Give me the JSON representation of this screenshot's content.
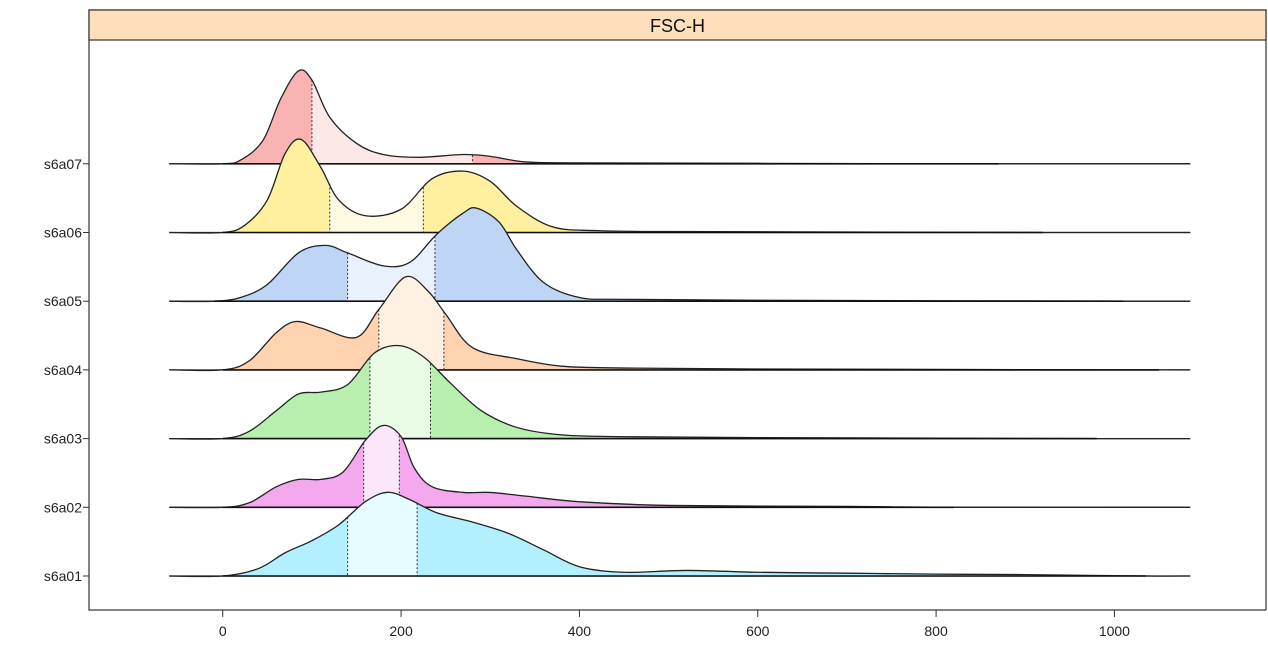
{
  "chart_data": {
    "type": "area",
    "title": "FSC-H",
    "xlim": [
      -150,
      1170
    ],
    "x_ticks": [
      0,
      200,
      400,
      600,
      800,
      1000
    ],
    "x_tick_labels": [
      "0",
      "200",
      "400",
      "600",
      "800",
      "1000"
    ],
    "xlabel": "",
    "ylabel": "",
    "range": [
      -60,
      1085
    ],
    "colors": {
      "strip": "#ffe0bb",
      "strip_border": "#333333"
    },
    "series": [
      {
        "label": "s6a01",
        "color": "#b2f0ff",
        "light": "#e6fbff",
        "data_max": 1035,
        "quartiles": [
          140,
          218
        ],
        "points": [
          [
            -60,
            0
          ],
          [
            0,
            0
          ],
          [
            40,
            0.08
          ],
          [
            70,
            0.25
          ],
          [
            100,
            0.38
          ],
          [
            130,
            0.55
          ],
          [
            160,
            0.8
          ],
          [
            185,
            0.9
          ],
          [
            210,
            0.82
          ],
          [
            240,
            0.68
          ],
          [
            280,
            0.58
          ],
          [
            320,
            0.46
          ],
          [
            360,
            0.28
          ],
          [
            400,
            0.1
          ],
          [
            450,
            0.04
          ],
          [
            520,
            0.06
          ],
          [
            600,
            0.04
          ],
          [
            700,
            0.03
          ],
          [
            800,
            0.02
          ],
          [
            900,
            0.015
          ],
          [
            1035,
            0
          ],
          [
            1085,
            0
          ]
        ]
      },
      {
        "label": "s6a02",
        "color": "#f4a8ee",
        "light": "#fce6fa",
        "data_max": 820,
        "quartiles": [
          158,
          198
        ],
        "points": [
          [
            -60,
            0
          ],
          [
            0,
            0
          ],
          [
            30,
            0.05
          ],
          [
            60,
            0.22
          ],
          [
            85,
            0.3
          ],
          [
            110,
            0.3
          ],
          [
            135,
            0.38
          ],
          [
            160,
            0.72
          ],
          [
            180,
            0.88
          ],
          [
            200,
            0.76
          ],
          [
            215,
            0.42
          ],
          [
            235,
            0.22
          ],
          [
            270,
            0.16
          ],
          [
            300,
            0.16
          ],
          [
            340,
            0.12
          ],
          [
            400,
            0.06
          ],
          [
            500,
            0.02
          ],
          [
            700,
            0.01
          ],
          [
            820,
            0
          ],
          [
            1085,
            0
          ]
        ]
      },
      {
        "label": "s6a03",
        "color": "#b8efae",
        "light": "#eafbe6",
        "data_max": 980,
        "quartiles": [
          165,
          233
        ],
        "points": [
          [
            -60,
            0
          ],
          [
            0,
            0
          ],
          [
            30,
            0.08
          ],
          [
            60,
            0.3
          ],
          [
            85,
            0.48
          ],
          [
            110,
            0.5
          ],
          [
            140,
            0.58
          ],
          [
            170,
            0.92
          ],
          [
            198,
            1.0
          ],
          [
            225,
            0.88
          ],
          [
            255,
            0.6
          ],
          [
            290,
            0.3
          ],
          [
            330,
            0.12
          ],
          [
            380,
            0.04
          ],
          [
            450,
            0.02
          ],
          [
            600,
            0.01
          ],
          [
            800,
            0.005
          ],
          [
            980,
            0
          ],
          [
            1085,
            0
          ]
        ]
      },
      {
        "label": "s6a04",
        "color": "#ffd2b0",
        "light": "#fff0e4",
        "data_max": 1050,
        "quartiles": [
          175,
          248
        ],
        "points": [
          [
            -60,
            0
          ],
          [
            0,
            0
          ],
          [
            30,
            0.1
          ],
          [
            60,
            0.4
          ],
          [
            82,
            0.52
          ],
          [
            110,
            0.45
          ],
          [
            150,
            0.35
          ],
          [
            175,
            0.65
          ],
          [
            205,
            1.0
          ],
          [
            230,
            0.85
          ],
          [
            250,
            0.6
          ],
          [
            280,
            0.24
          ],
          [
            330,
            0.12
          ],
          [
            380,
            0.04
          ],
          [
            450,
            0.02
          ],
          [
            600,
            0.01
          ],
          [
            800,
            0.005
          ],
          [
            1050,
            0
          ],
          [
            1085,
            0
          ]
        ]
      },
      {
        "label": "s6a05",
        "color": "#bfd5f5",
        "light": "#e9f1fd",
        "data_max": 1010,
        "quartiles": [
          140,
          238
        ],
        "points": [
          [
            -60,
            0
          ],
          [
            -10,
            0
          ],
          [
            20,
            0.04
          ],
          [
            50,
            0.18
          ],
          [
            85,
            0.52
          ],
          [
            115,
            0.6
          ],
          [
            140,
            0.52
          ],
          [
            180,
            0.38
          ],
          [
            210,
            0.42
          ],
          [
            240,
            0.72
          ],
          [
            270,
            0.95
          ],
          [
            285,
            1.0
          ],
          [
            310,
            0.85
          ],
          [
            330,
            0.55
          ],
          [
            360,
            0.2
          ],
          [
            400,
            0.04
          ],
          [
            450,
            0.02
          ],
          [
            600,
            0.01
          ],
          [
            800,
            0.005
          ],
          [
            1010,
            0
          ],
          [
            1085,
            0
          ]
        ]
      },
      {
        "label": "s6a06",
        "color": "#fff0a0",
        "light": "#fffbe2",
        "data_max": 920,
        "quartiles": [
          120,
          225
        ],
        "points": [
          [
            -60,
            0
          ],
          [
            0,
            0
          ],
          [
            25,
            0.08
          ],
          [
            50,
            0.35
          ],
          [
            70,
            0.85
          ],
          [
            88,
            1.0
          ],
          [
            110,
            0.7
          ],
          [
            130,
            0.35
          ],
          [
            160,
            0.18
          ],
          [
            200,
            0.25
          ],
          [
            235,
            0.58
          ],
          [
            270,
            0.66
          ],
          [
            300,
            0.55
          ],
          [
            330,
            0.28
          ],
          [
            370,
            0.06
          ],
          [
            420,
            0.02
          ],
          [
            500,
            0.01
          ],
          [
            700,
            0.005
          ],
          [
            920,
            0
          ],
          [
            1085,
            0
          ]
        ]
      },
      {
        "label": "s6a07",
        "color": "#f9b3b3",
        "light": "#fde8e8",
        "data_max": 870,
        "quartiles": [
          100,
          280
        ],
        "points": [
          [
            -60,
            0
          ],
          [
            0,
            0
          ],
          [
            20,
            0.04
          ],
          [
            45,
            0.25
          ],
          [
            65,
            0.7
          ],
          [
            85,
            1.0
          ],
          [
            100,
            0.9
          ],
          [
            120,
            0.5
          ],
          [
            150,
            0.22
          ],
          [
            180,
            0.1
          ],
          [
            220,
            0.07
          ],
          [
            270,
            0.1
          ],
          [
            300,
            0.08
          ],
          [
            340,
            0.02
          ],
          [
            400,
            0.01
          ],
          [
            600,
            0.005
          ],
          [
            870,
            0
          ],
          [
            1085,
            0
          ]
        ]
      }
    ]
  }
}
